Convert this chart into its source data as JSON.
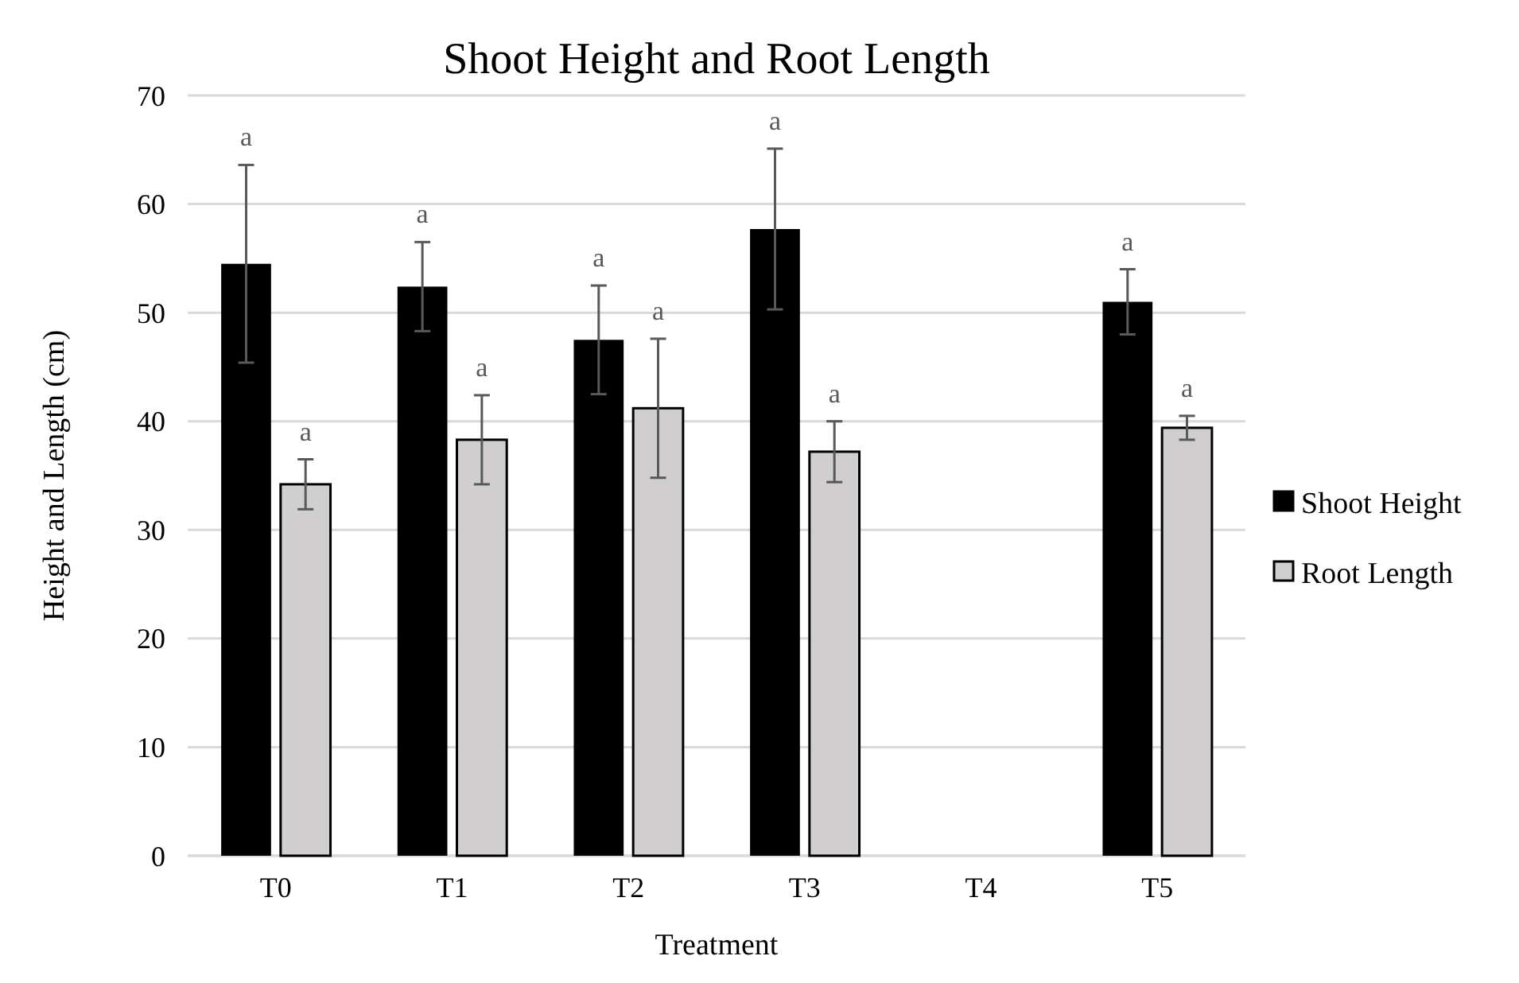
{
  "chart_data": {
    "type": "bar",
    "title": "Shoot Height and Root Length",
    "xlabel": "Treatment",
    "ylabel": "Height and Length (cm)",
    "categories": [
      "T0",
      "T1",
      "T2",
      "T3",
      "T4",
      "T5"
    ],
    "series": [
      {
        "name": "Shoot Height",
        "color": "#000000",
        "values": [
          54.5,
          52.4,
          47.5,
          57.7,
          null,
          51.0
        ],
        "errors": [
          9.1,
          4.1,
          5.0,
          7.4,
          null,
          3.0
        ]
      },
      {
        "name": "Root Length",
        "color": "#d0cece",
        "values": [
          34.2,
          38.3,
          41.2,
          37.2,
          null,
          39.4
        ],
        "errors": [
          2.3,
          4.1,
          6.4,
          2.8,
          null,
          1.1
        ]
      }
    ],
    "annotations": [
      "a",
      "a",
      "a",
      "a",
      "a",
      "a",
      "a",
      "a",
      "a",
      "a"
    ],
    "ylim": [
      0,
      70
    ],
    "yticks": [
      0,
      10,
      20,
      30,
      40,
      50,
      60,
      70
    ],
    "grid": "y",
    "legend": "right"
  }
}
